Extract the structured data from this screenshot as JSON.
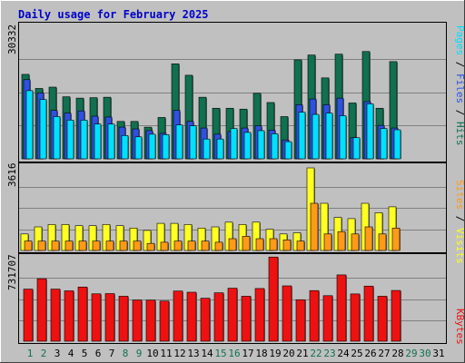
{
  "chart_data": {
    "type": "bar",
    "title": "Daily usage for February 2025",
    "days": [
      "1",
      "2",
      "3",
      "4",
      "5",
      "6",
      "7",
      "8",
      "9",
      "10",
      "11",
      "12",
      "13",
      "14",
      "15",
      "16",
      "17",
      "18",
      "19",
      "20",
      "21",
      "22",
      "23",
      "24",
      "25",
      "26",
      "27",
      "28",
      "29",
      "30",
      "31"
    ],
    "weekend_days": [
      "1",
      "2",
      "8",
      "9",
      "15",
      "16",
      "22",
      "23",
      "29",
      "30"
    ],
    "colors": {
      "background": "#c0c0c0",
      "title": "#0000cc",
      "hits": "#107050",
      "files": "#2f50e0",
      "pages": "#00e0ff",
      "visits": "#ffff22",
      "sites": "#ff9a18",
      "kbytes": "#ee1111",
      "weekday_label": "#000000",
      "weekend_label": "#107050"
    },
    "panels": {
      "hits_panel": {
        "max_label": "30332",
        "ymax": 30332,
        "series": [
          {
            "name": "Hits",
            "values": [
              19200,
              16000,
              16300,
              14100,
              13800,
              13900,
              14000,
              8500,
              8500,
              7200,
              9400,
              21600,
              19000,
              14000,
              11500,
              11500,
              11300,
              14900,
              12800,
              9600,
              22500,
              23600,
              18400,
              23800,
              12700,
              24400,
              11500,
              22100,
              null,
              null,
              null
            ]
          },
          {
            "name": "Files",
            "values": [
              18000,
              15000,
              11000,
              10400,
              10900,
              9700,
              9500,
              7200,
              6800,
              6400,
              5800,
              11000,
              8500,
              7000,
              5600,
              6200,
              7000,
              7500,
              6500,
              4300,
              12300,
              13600,
              12300,
              13800,
              4800,
              13000,
              7600,
              7000,
              null,
              null,
              null
            ]
          },
          {
            "name": "Pages",
            "values": [
              15500,
              13500,
              9600,
              8800,
              8800,
              7900,
              7900,
              5300,
              5000,
              5600,
              5500,
              7700,
              7500,
              4500,
              4500,
              6900,
              6000,
              6400,
              5700,
              3900,
              10600,
              10100,
              10400,
              9800,
              4800,
              12500,
              6900,
              6600,
              null,
              null,
              null
            ]
          }
        ],
        "legend": [
          "Pages",
          "Files",
          "Hits"
        ]
      },
      "visits_panel": {
        "max_label": "3616",
        "ymax": 3616,
        "series": [
          {
            "name": "Visits",
            "values": [
              700,
              1000,
              1100,
              1100,
              1050,
              1050,
              1100,
              1050,
              950,
              850,
              1150,
              1150,
              1100,
              950,
              1000,
              1200,
              1100,
              1200,
              900,
              700,
              750,
              3500,
              2000,
              1400,
              1350,
              2000,
              1600,
              1850,
              null,
              null,
              null
            ]
          },
          {
            "name": "Sites",
            "values": [
              400,
              400,
              400,
              400,
              400,
              400,
              400,
              400,
              400,
              300,
              350,
              400,
              400,
              400,
              350,
              500,
              600,
              500,
              500,
              450,
              400,
              2000,
              700,
              800,
              700,
              1000,
              700,
              950,
              null,
              null,
              null
            ]
          }
        ],
        "legend": [
          "Sites",
          "Visits"
        ]
      },
      "kbytes_panel": {
        "max_label": "731707",
        "ymax": 731707,
        "series": [
          {
            "name": "KBytes",
            "values": [
              452000,
              542000,
              452000,
              437000,
              470000,
              411000,
              413000,
              390000,
              357000,
              356000,
              348000,
              435000,
              425000,
              373000,
              420000,
              460000,
              390000,
              457000,
              730000,
              480000,
              360000,
              439000,
              395000,
              575000,
              410000,
              478000,
              390000,
              440000,
              null,
              null,
              null
            ]
          }
        ],
        "legend": [
          "KBytes"
        ]
      }
    }
  }
}
